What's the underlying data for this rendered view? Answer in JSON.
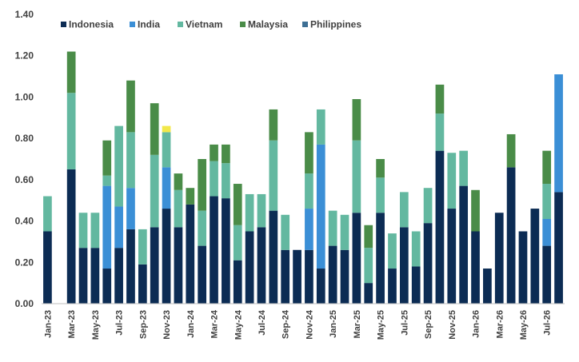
{
  "chart_data": {
    "type": "bar",
    "stacked": true,
    "ylim": [
      0,
      1.4
    ],
    "yticks": [
      "0.00",
      "0.20",
      "0.40",
      "0.60",
      "0.80",
      "1.00",
      "1.20",
      "1.40"
    ],
    "grid": false,
    "legend_position": "top-left",
    "categories": [
      "Jan-23",
      "Feb-23",
      "Mar-23",
      "Apr-23",
      "May-23",
      "Jun-23",
      "Jul-23",
      "Aug-23",
      "Sep-23",
      "Oct-23",
      "Nov-23",
      "Dec-23",
      "Jan-24",
      "Feb-24",
      "Mar-24",
      "Apr-24",
      "May-24",
      "Jun-24",
      "Jul-24",
      "Aug-24",
      "Sep-24",
      "Oct-24",
      "Nov-24",
      "Dec-24",
      "Jan-25",
      "Feb-25",
      "Mar-25",
      "Apr-25",
      "May-25",
      "Jun-25",
      "Jul-25",
      "Aug-25",
      "Sep-25",
      "Oct-25",
      "Nov-25",
      "Dec-25",
      "Jan-26",
      "Feb-26",
      "Mar-26",
      "Apr-26",
      "May-26",
      "Jun-26",
      "Jul-26",
      "Aug-26"
    ],
    "x_tick_labels": [
      "Jan-23",
      "",
      "Mar-23",
      "",
      "May-23",
      "",
      "Jul-23",
      "",
      "Sep-23",
      "",
      "Nov-23",
      "",
      "Jan-24",
      "",
      "Mar-24",
      "",
      "May-24",
      "",
      "Jul-24",
      "",
      "Sep-24",
      "",
      "Nov-24",
      "",
      "Jan-25",
      "",
      "Mar-25",
      "",
      "May-25",
      "",
      "Jul-25",
      "",
      "Sep-25",
      "",
      "Nov-25",
      "",
      "Jan-26",
      "",
      "Mar-26",
      "",
      "May-26",
      "",
      "Jul-26",
      ""
    ],
    "series": [
      {
        "name": "Indonesia",
        "color": "#0c2c54",
        "values": [
          0.35,
          0,
          0.65,
          0.27,
          0.27,
          0.17,
          0.27,
          0.36,
          0.19,
          0.37,
          0.46,
          0.37,
          0.48,
          0.28,
          0.52,
          0.51,
          0.21,
          0.35,
          0.37,
          0.45,
          0.26,
          0.26,
          0.26,
          0.17,
          0.28,
          0.26,
          0.44,
          0.1,
          0.44,
          0.17,
          0.37,
          0.18,
          0.39,
          0.74,
          0.46,
          0.57,
          0.35,
          0.17,
          0.44,
          0.66,
          0.35,
          0.46,
          0.28,
          0.54
        ]
      },
      {
        "name": "India",
        "color": "#3b8fd6",
        "values": [
          0,
          0,
          0,
          0,
          0,
          0.4,
          0.2,
          0.2,
          0,
          0,
          0.2,
          0,
          0,
          0,
          0,
          0,
          0,
          0,
          0,
          0,
          0,
          0,
          0.2,
          0.6,
          0,
          0,
          0,
          0,
          0,
          0,
          0,
          0,
          0,
          0,
          0,
          0,
          0,
          0,
          0,
          0,
          0,
          0,
          0.13,
          0.57
        ]
      },
      {
        "name": "Vietnam",
        "color": "#63b8a0",
        "values": [
          0.17,
          0,
          0.37,
          0.17,
          0.17,
          0.05,
          0.39,
          0.27,
          0.17,
          0.35,
          0.17,
          0.18,
          0,
          0.17,
          0.17,
          0.17,
          0.17,
          0.18,
          0.16,
          0.34,
          0.17,
          0,
          0.17,
          0.17,
          0.17,
          0.17,
          0.35,
          0.17,
          0.17,
          0.17,
          0.17,
          0.17,
          0.17,
          0.18,
          0.27,
          0.17,
          0,
          0,
          0,
          0,
          0,
          0,
          0.17,
          0
        ]
      },
      {
        "name": "Malaysia",
        "color": "#4a8c48",
        "values": [
          0,
          0,
          0.2,
          0,
          0,
          0.17,
          0,
          0.25,
          0,
          0.25,
          0,
          0.08,
          0.08,
          0.25,
          0.08,
          0.09,
          0.2,
          0,
          0,
          0.15,
          0,
          0,
          0.2,
          0,
          0,
          0,
          0.2,
          0.11,
          0.09,
          0,
          0,
          0,
          0,
          0.14,
          0,
          0,
          0.2,
          0,
          0,
          0.16,
          0,
          0,
          0.16,
          0
        ]
      },
      {
        "name": "Philippines",
        "color": "#3d6f94",
        "values": [
          0,
          0,
          0,
          0,
          0,
          0,
          0,
          0,
          0,
          0,
          0,
          0,
          0,
          0,
          0,
          0,
          0,
          0,
          0,
          0,
          0,
          0,
          0,
          0,
          0,
          0,
          0,
          0,
          0,
          0,
          0,
          0,
          0,
          0,
          0,
          0,
          0,
          0,
          0,
          0,
          0,
          0,
          0,
          0
        ]
      },
      {
        "name": "",
        "color": "#f2e84a",
        "values": [
          0,
          0,
          0,
          0,
          0,
          0,
          0,
          0,
          0,
          0,
          0.03,
          0,
          0,
          0,
          0,
          0,
          0,
          0,
          0,
          0,
          0,
          0,
          0,
          0,
          0,
          0,
          0,
          0,
          0,
          0,
          0,
          0,
          0,
          0,
          0,
          0,
          0,
          0,
          0,
          0,
          0,
          0,
          0,
          0
        ]
      }
    ]
  }
}
